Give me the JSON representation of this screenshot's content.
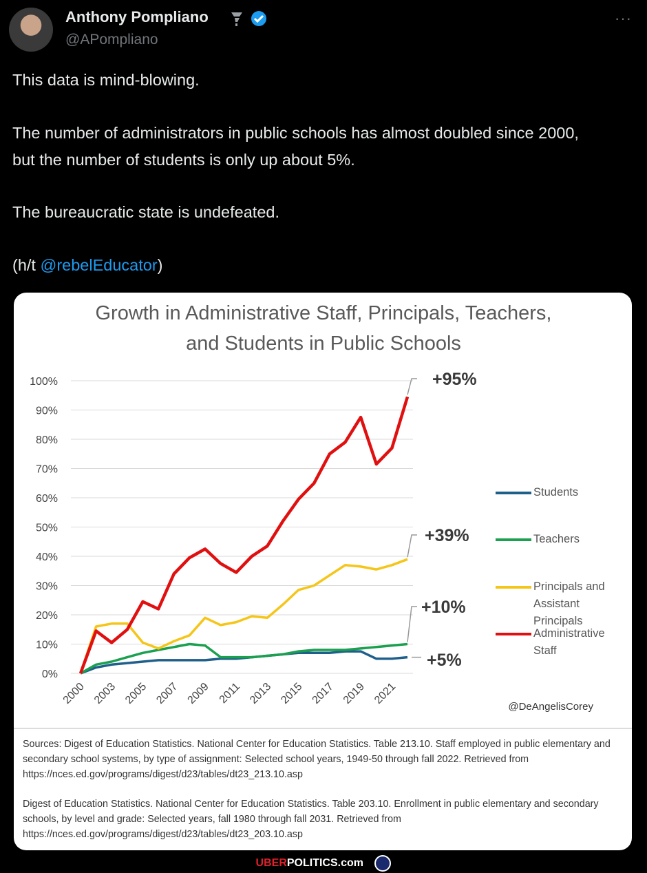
{
  "header": {
    "name": "Anthony Pompliano",
    "handle": "@APompliano"
  },
  "tweet": {
    "paragraphs": [
      "This data is mind-blowing.",
      "The number of administrators in public schools has almost doubled since 2000, but the number of students is only up about 5%.",
      "The bureaucratic state is undefeated."
    ],
    "hat_tip": {
      "prefix": "(h/t ",
      "mention": "@rebelEducator",
      "suffix": ")"
    }
  },
  "chart_data": {
    "type": "line",
    "title": "Growth in Administrative Staff, Principals, Teachers, and Students in Public Schools",
    "categories": [
      "2000",
      null,
      "2003",
      null,
      "2005",
      null,
      "2007",
      null,
      "2009",
      null,
      "2011",
      null,
      "2013",
      null,
      "2015",
      null,
      "2017",
      null,
      "2019",
      null,
      "2021",
      null
    ],
    "series": [
      {
        "name": "Students",
        "color": "#1f5f8b",
        "values": [
          0,
          2,
          3,
          3.5,
          4,
          4.5,
          4.5,
          4.5,
          4.5,
          5,
          5,
          5.5,
          6,
          6.5,
          7,
          7,
          7,
          7.5,
          7.5,
          5,
          5,
          5.5
        ]
      },
      {
        "name": "Teachers",
        "color": "#1aa04f",
        "values": [
          0,
          3,
          4,
          5.5,
          7,
          8,
          9,
          10,
          9.5,
          5.5,
          5.5,
          5.5,
          6,
          6.5,
          7.5,
          8,
          8,
          8,
          8.5,
          9,
          9.5,
          10
        ]
      },
      {
        "name": "Principals and Assistant Principals",
        "color": "#f5c518",
        "values": [
          0,
          16,
          17,
          17,
          10.5,
          8.5,
          11,
          13,
          19,
          16.5,
          17.5,
          19.5,
          19,
          23.5,
          28.5,
          30,
          33.5,
          37,
          36.5,
          35.5,
          37,
          39
        ]
      },
      {
        "name": "Administrative Staff",
        "color": "#e01010",
        "values": [
          0,
          14.5,
          10.5,
          15,
          24.5,
          22,
          34,
          39.5,
          42.5,
          37.5,
          34.5,
          40,
          43.5,
          52,
          59.5,
          65,
          75,
          79,
          87.5,
          71.5,
          77,
          94.5
        ]
      }
    ],
    "annotations": [
      "+95%",
      "+39%",
      "+10%",
      "+5%"
    ],
    "ylim": [
      0,
      100
    ],
    "yticks": [
      {
        "value": 0,
        "label": "0%"
      },
      {
        "value": 10,
        "label": "10%"
      },
      {
        "value": 20,
        "label": "20%"
      },
      {
        "value": 30,
        "label": "30%"
      },
      {
        "value": 40,
        "label": "40%"
      },
      {
        "value": 50,
        "label": "50%"
      },
      {
        "value": 60,
        "label": "60%"
      },
      {
        "value": 70,
        "label": "70%"
      },
      {
        "value": 80,
        "label": "80%"
      },
      {
        "value": 90,
        "label": "90%"
      },
      {
        "value": 100,
        "label": "100%"
      }
    ],
    "grid": true,
    "legend": "right",
    "credit": "@DeAngelisCorey",
    "sources": [
      "Sources: Digest of Education Statistics. National Center for Education Statistics. Table 213.10. Staff employed in public elementary and secondary school systems, by type of assignment: Selected school years, 1949-50 through fall 2022. Retrieved from https://nces.ed.gov/programs/digest/d23/tables/dt23_213.10.asp",
      "Digest of Education Statistics. National Center for Education Statistics. Table 203.10. Enrollment in public elementary and secondary schools, by level and grade: Selected years, fall 1980 through fall 2031. Retrieved from https://nces.ed.gov/programs/digest/d23/tables/dt23_203.10.asp"
    ]
  },
  "footer": {
    "brand_a": "UBER",
    "brand_b": "POLITICS.com"
  }
}
